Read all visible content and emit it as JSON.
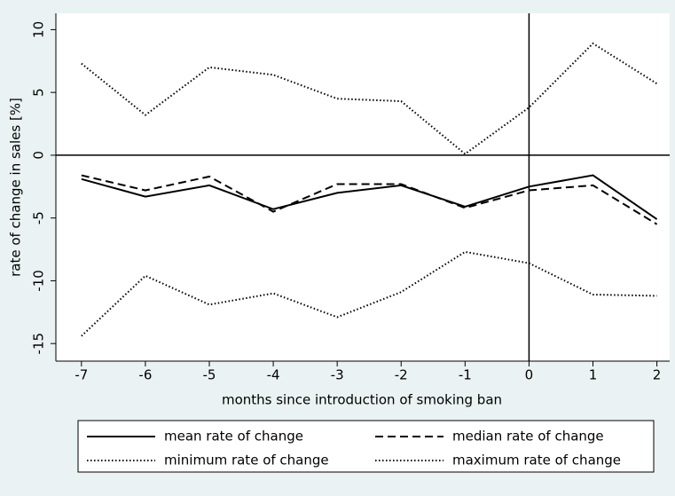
{
  "chart_data": {
    "type": "line",
    "xlabel": "months since introduction of smoking ban",
    "ylabel": "rate of change in sales [%]",
    "x": [
      -7,
      -6,
      -5,
      -4,
      -3,
      -2,
      -1,
      0,
      1,
      2
    ],
    "series": [
      {
        "name": "mean rate of change",
        "color": "#000000",
        "style": "solid",
        "values": [
          -1.9,
          -3.3,
          -2.4,
          -4.3,
          -3.0,
          -2.4,
          -4.1,
          -2.5,
          -1.6,
          -5.1
        ]
      },
      {
        "name": "median rate of change",
        "color": "#000000",
        "style": "dashed",
        "values": [
          -1.6,
          -2.8,
          -1.7,
          -4.5,
          -2.3,
          -2.3,
          -4.2,
          -2.8,
          -2.4,
          -5.5
        ]
      },
      {
        "name": "minimum rate of change",
        "color": "#000000",
        "style": "dotted",
        "values": [
          -14.4,
          -9.6,
          -11.9,
          -11.0,
          -12.9,
          -10.9,
          -7.7,
          -8.6,
          -11.1,
          -11.2
        ]
      },
      {
        "name": "maximum rate of change",
        "color": "#000000",
        "style": "dotted",
        "values": [
          7.3,
          3.2,
          7.0,
          6.4,
          4.5,
          4.3,
          0.1,
          3.8,
          8.9,
          5.7
        ]
      }
    ],
    "xlim": [
      -7.4,
      2.2
    ],
    "ylim": [
      -16.4,
      11.3
    ],
    "xticks": [
      -7,
      -6,
      -5,
      -4,
      -3,
      -2,
      -1,
      0,
      1,
      2
    ],
    "yticks": [
      -15,
      -10,
      -5,
      0,
      5,
      10
    ],
    "hline": 0,
    "vline": 0,
    "legend": "bottom"
  }
}
